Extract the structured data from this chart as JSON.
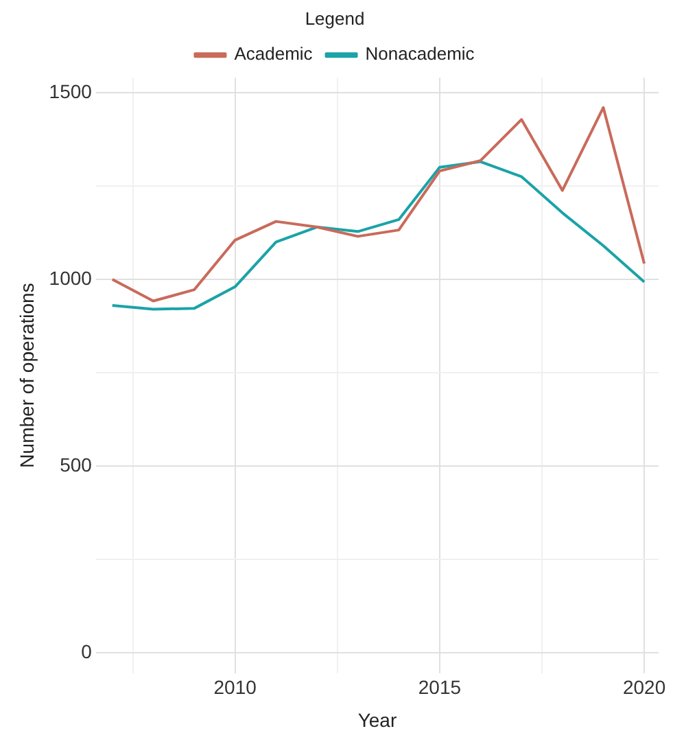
{
  "chart_data": {
    "type": "line",
    "xlabel": "Year",
    "ylabel": "Number of operations",
    "legend_title": "Legend",
    "legend": "top",
    "x": [
      2007,
      2008,
      2009,
      2010,
      2011,
      2012,
      2013,
      2014,
      2015,
      2016,
      2017,
      2018,
      2019,
      2020
    ],
    "series": [
      {
        "name": "Academic",
        "color": "#c96a5b",
        "values": [
          1000,
          942,
          972,
          1105,
          1155,
          1140,
          1115,
          1132,
          1290,
          1318,
          1428,
          1238,
          1460,
          1042
        ]
      },
      {
        "name": "Nonacademic",
        "color": "#1aa3a8",
        "values": [
          930,
          920,
          922,
          980,
          1100,
          1140,
          1128,
          1160,
          1300,
          1315,
          1275,
          1178,
          1090,
          993
        ]
      }
    ],
    "xlim": [
      2006.6,
      2020.35
    ],
    "xticks": [
      {
        "value": 2007.5,
        "label": null
      },
      2010,
      {
        "value": 2012.5,
        "label": null
      },
      2015,
      {
        "value": 2017.5,
        "label": null
      },
      2020
    ],
    "ylim": [
      -55,
      1540
    ],
    "yticks": [
      0,
      {
        "value": 250,
        "label": null
      },
      500,
      {
        "value": 750,
        "label": null
      },
      1000,
      {
        "value": 1250,
        "label": null
      },
      1500
    ],
    "grid": true,
    "marker": "none",
    "line_style": "solid"
  }
}
